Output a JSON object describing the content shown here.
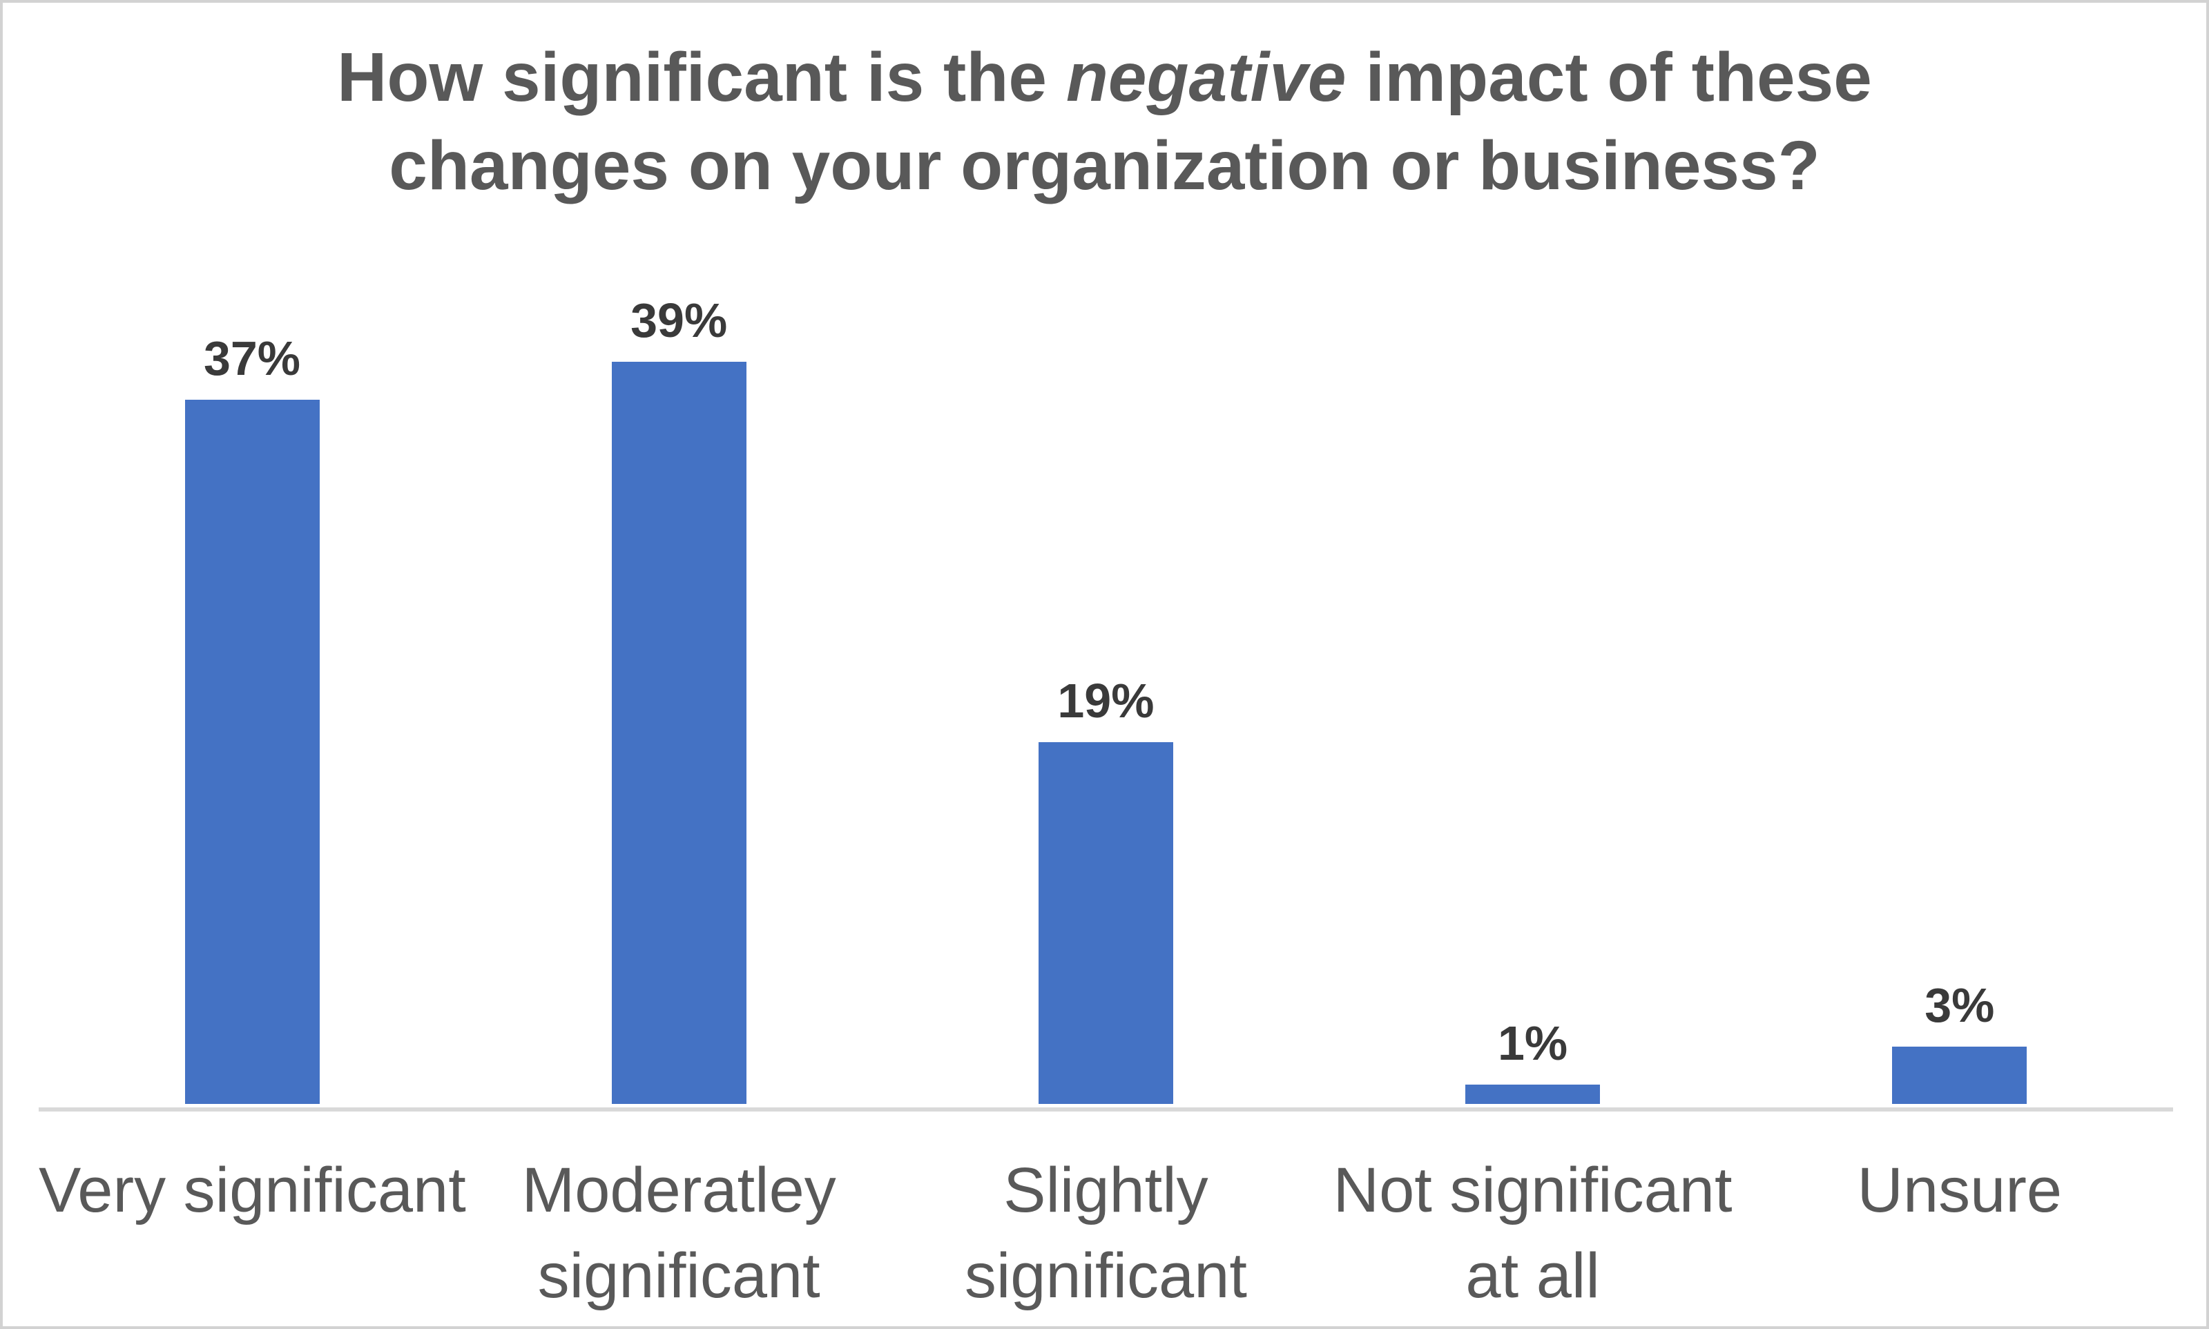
{
  "chart_data": {
    "type": "bar",
    "title": "How significant is the negative impact of these changes on your organization or business?",
    "title_italic_word": "negative",
    "categories": [
      "Very significant",
      "Moderatley significant",
      "Slightly significant",
      "Not significant at all",
      "Unsure"
    ],
    "values": [
      37,
      39,
      19,
      1,
      3
    ],
    "value_labels": [
      "37%",
      "39%",
      "19%",
      "1%",
      "3%"
    ],
    "unit": "percent",
    "ylim": [
      0,
      45
    ],
    "grid": false,
    "legend": false,
    "y_axis_visible": false,
    "bar_color": "#4472C4"
  },
  "title": {
    "line1_pre": "How significant is the ",
    "line1_italic": "negative",
    "line1_post": " impact of these",
    "line2": "changes on your organization or business?"
  },
  "bars": [
    {
      "value": 37,
      "value_label": "37%",
      "category": "Very significant",
      "category_lines": [
        "Very significant"
      ]
    },
    {
      "value": 39,
      "value_label": "39%",
      "category": "Moderatley significant",
      "category_lines": [
        "Moderatley",
        "significant"
      ]
    },
    {
      "value": 19,
      "value_label": "19%",
      "category": "Slightly significant",
      "category_lines": [
        "Slightly",
        "significant"
      ]
    },
    {
      "value": 1,
      "value_label": "1%",
      "category": "Not significant at all",
      "category_lines": [
        "Not significant",
        "at all"
      ]
    },
    {
      "value": 3,
      "value_label": "3%",
      "category": "Unsure",
      "category_lines": [
        "Unsure"
      ]
    }
  ],
  "colors": {
    "bar": "#4472C4",
    "title_text": "#595959",
    "data_label": "#3A3A3A",
    "category_label": "#595959",
    "axis_line": "#D9D9D9",
    "frame_border": "#D2D2D2"
  }
}
